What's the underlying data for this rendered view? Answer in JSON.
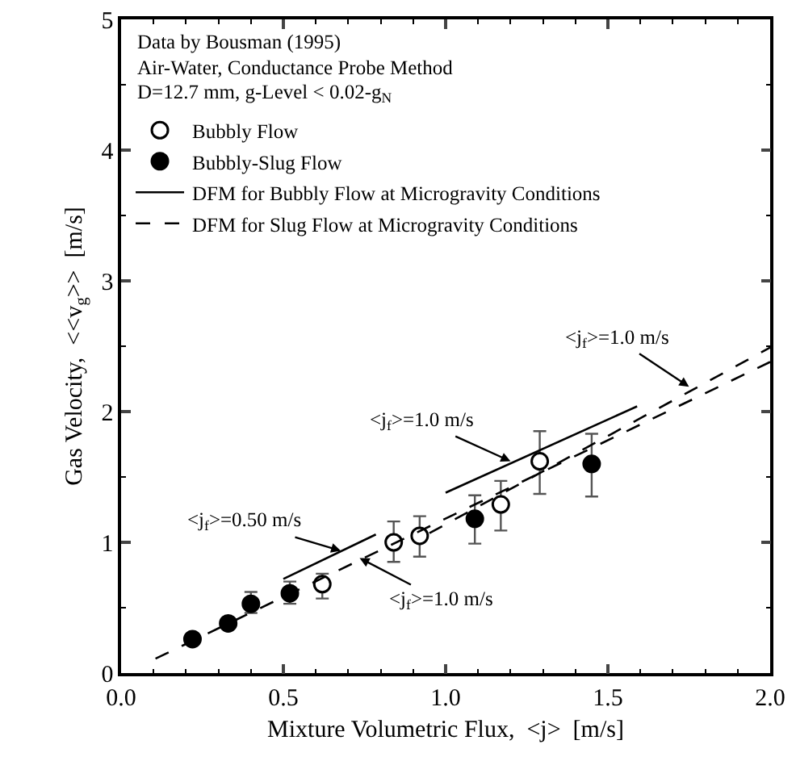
{
  "chart_data": {
    "type": "scatter",
    "xlabel": "Mixture Volumetric Flux,  <j>  [m/s]",
    "ylabel": "Gas Velocity,  <<v$_{g}$>>  [m/s]",
    "xlim": [
      0,
      2.0
    ],
    "ylim": [
      0,
      5
    ],
    "xticks": [
      {
        "value": 0,
        "label": "0.0"
      },
      0.5,
      {
        "value": 1,
        "label": "1.0"
      },
      1.5,
      {
        "value": 2,
        "label": "2.0"
      }
    ],
    "yticks": [
      0,
      1,
      2,
      3,
      4,
      5
    ],
    "legend": "top left",
    "series": [
      {
        "name": "Bubbly Flow",
        "marker": "circle",
        "color": "#ffffff",
        "x": [
          0.62,
          0.84,
          0.92,
          1.17,
          1.29
        ],
        "values": [
          0.68,
          1.0,
          1.05,
          1.29,
          1.62
        ],
        "errors": [
          [
            0.57,
            0.76
          ],
          [
            0.85,
            1.16
          ],
          [
            0.89,
            1.2
          ],
          [
            1.09,
            1.47
          ],
          [
            1.37,
            1.85
          ]
        ]
      },
      {
        "name": "Bubbly-Slug Flow",
        "marker": "circle",
        "color": "#000000",
        "x": [
          0.22,
          0.33,
          0.4,
          0.52,
          1.09,
          1.45
        ],
        "values": [
          0.26,
          0.38,
          0.53,
          0.61,
          1.18,
          1.6
        ],
        "errors": [
          null,
          null,
          [
            0.46,
            0.62
          ],
          [
            0.53,
            0.7
          ],
          [
            0.99,
            1.36
          ],
          [
            1.35,
            1.83
          ]
        ]
      },
      {
        "name": "DFM for Bubbly Flow at Microgravity Conditions",
        "type": "line",
        "line_style": "solid",
        "color": "#000000",
        "x": [
          0.5,
          0.785,
          null,
          1.0,
          1.59
        ],
        "values": [
          0.72,
          1.06,
          null,
          1.38,
          2.04
        ]
      },
      {
        "name": "DFM for Slug Flow at Microgravity Conditions",
        "type": "line",
        "line_style": "dashed",
        "color": "#000000",
        "x": [
          0.106,
          2.0
        ],
        "values": [
          0.11,
          2.38
        ]
      },
      {
        "type": "line",
        "line_style": "dashed",
        "color": "#000000",
        "x": [
          0.95,
          2.0
        ],
        "values": [
          1.07,
          2.49
        ]
      }
    ],
    "annotations": [
      "Data by Bousman (1995)",
      "Air-Water, Conductance Probe Method",
      "D=12.7 mm, g-Level < 0.02-g$_{N}$",
      {
        "text": "<j$_{f}$>=0.50 m/s",
        "x": 0.677,
        "y": 0.935
      },
      {
        "text": "<j$_{f}$>=1.0 m/s",
        "x": 0.735,
        "y": 0.88
      },
      {
        "text": "<j$_{f}$>=1.0 m/s",
        "x": 1.2,
        "y": 1.62
      },
      {
        "text": "<j$_{f}$>=1.0 m/s",
        "x": 1.75,
        "y": 2.19
      }
    ]
  }
}
